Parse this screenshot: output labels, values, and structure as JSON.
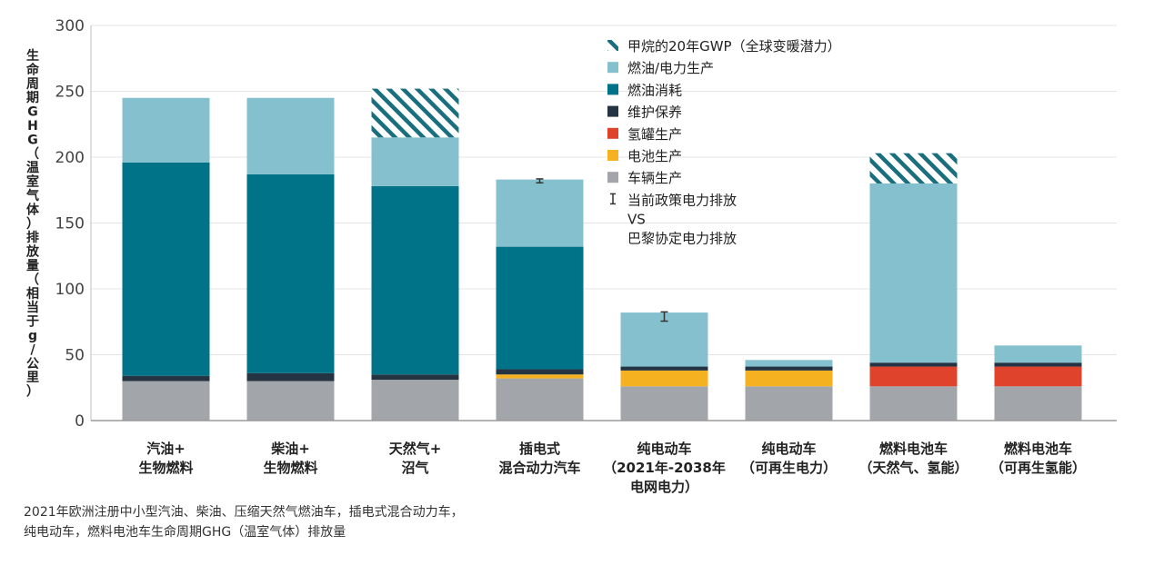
{
  "chart_data": {
    "type": "bar",
    "stacked": true,
    "ylabel": "生命周期GHG（温室气体）排放量（相当于g/公里）",
    "ylim": [
      0,
      300
    ],
    "yticks": [
      0,
      50,
      100,
      150,
      200,
      250,
      300
    ],
    "grid": true,
    "legend_position": "top-right",
    "categories": [
      [
        "汽油+",
        "生物燃料"
      ],
      [
        "柴油+",
        "生物燃料"
      ],
      [
        "天然气+",
        "沼气"
      ],
      [
        "插电式",
        "混合动力汽车"
      ],
      [
        "纯电动车",
        "（2021年-2038年",
        "电网电力）"
      ],
      [
        "纯电动车",
        "（可再生电力）"
      ],
      [
        "燃料电池车",
        "（天然气、氢能）"
      ],
      [
        "燃料电池车",
        "（可再生氢能）"
      ]
    ],
    "series": [
      {
        "name": "车辆生产",
        "color": "#a2a5a9",
        "values": [
          30,
          30,
          31,
          32,
          26,
          26,
          26,
          26
        ]
      },
      {
        "name": "电池生产",
        "color": "#f5b120",
        "values": [
          0,
          0,
          0,
          3,
          12,
          12,
          0,
          0
        ]
      },
      {
        "name": "氢罐生产",
        "color": "#e0432b",
        "values": [
          0,
          0,
          0,
          0,
          0,
          0,
          15,
          15
        ]
      },
      {
        "name": "维护保养",
        "color": "#253442",
        "values": [
          4,
          6,
          4,
          4,
          3,
          3,
          3,
          3
        ]
      },
      {
        "name": "燃油消耗",
        "color": "#007388",
        "values": [
          162,
          151,
          143,
          93,
          0,
          0,
          0,
          0
        ]
      },
      {
        "name": "燃油/电力生产",
        "color": "#84c0ce",
        "values": [
          49,
          58,
          37,
          51,
          41,
          5,
          136,
          13
        ]
      },
      {
        "name": "甲烷的20年GWP（全球变暖潜力）",
        "color": "#1a6f7e",
        "pattern": "hatch",
        "values": [
          0,
          0,
          37,
          0,
          0,
          0,
          23,
          0
        ]
      }
    ],
    "error_bars": {
      "name": "当前政策电力排放",
      "name_line2": "VS",
      "name_line3": "巴黎协定电力排放",
      "points": [
        {
          "category_index": 3,
          "value": 182,
          "low": 180.5,
          "high": 183.5
        },
        {
          "category_index": 4,
          "value": 79,
          "low": 75.5,
          "high": 82.5
        }
      ]
    },
    "legend_order": [
      "甲烷的20年GWP（全球变暖潜力）",
      "燃油/电力生产",
      "燃油消耗",
      "维护保养",
      "氢罐生产",
      "电池生产",
      "车辆生产"
    ]
  },
  "caption": {
    "line1": "2021年欧洲注册中小型汽油、柴油、压缩天然气燃油车，插电式混合动力车，",
    "line2": "纯电动车，燃料电池车生命周期GHG（温室气体）排放量"
  }
}
